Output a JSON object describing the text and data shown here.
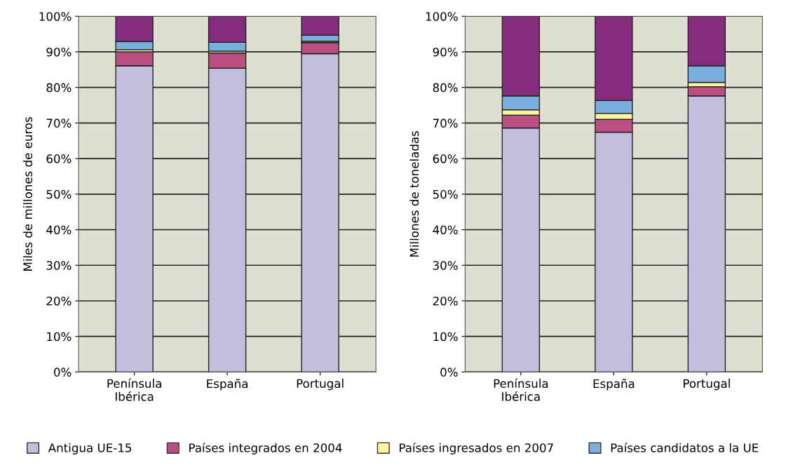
{
  "chart_data": [
    {
      "type": "bar",
      "stacked": true,
      "ylabel": "Miles de millones de euros",
      "categories": [
        "Península\nIbérica",
        "España",
        "Portugal"
      ],
      "ylim": [
        0,
        100
      ],
      "yticks": [
        {
          "value": 0,
          "label": "0%"
        },
        {
          "value": 10,
          "label": "10%"
        },
        {
          "value": 20,
          "label": "20%"
        },
        {
          "value": 30,
          "label": "30%"
        },
        {
          "value": 40,
          "label": "40%"
        },
        {
          "value": 50,
          "label": "50%"
        },
        {
          "value": 60,
          "label": "60%"
        },
        {
          "value": 70,
          "label": "70%"
        },
        {
          "value": 80,
          "label": "80%"
        },
        {
          "value": 90,
          "label": "90%"
        },
        {
          "value": 100,
          "label": "100%"
        }
      ],
      "grid": "y",
      "legend": "bottom",
      "series": [
        {
          "name": "Antigua UE-15",
          "color": "#c2bedd",
          "values": [
            86.1,
            85.4,
            89.5
          ]
        },
        {
          "name": "Países integrados en 2004",
          "color": "#b94f82",
          "values": [
            3.9,
            4.3,
            3.1
          ]
        },
        {
          "name": "Países ingresados en 2007",
          "color": "#fff59a",
          "values": [
            0.6,
            0.5,
            0.4
          ]
        },
        {
          "name": "Países candidatos a la UE",
          "color": "#7aaedd",
          "values": [
            2.3,
            2.5,
            1.7
          ]
        },
        {
          "color": "#862c7f",
          "values": [
            7.1,
            7.3,
            5.3
          ]
        }
      ]
    },
    {
      "type": "bar",
      "stacked": true,
      "ylabel": "Millones de toneladas",
      "categories": [
        "Península\nIbérica",
        "España",
        "Portugal"
      ],
      "ylim": [
        0,
        100
      ],
      "yticks": [
        {
          "value": 0,
          "label": "0%"
        },
        {
          "value": 10,
          "label": "10%"
        },
        {
          "value": 20,
          "label": "20%"
        },
        {
          "value": 30,
          "label": "30%"
        },
        {
          "value": 40,
          "label": "40%"
        },
        {
          "value": 50,
          "label": "50%"
        },
        {
          "value": 60,
          "label": "60%"
        },
        {
          "value": 70,
          "label": "70%"
        },
        {
          "value": 80,
          "label": "80%"
        },
        {
          "value": 90,
          "label": "90%"
        },
        {
          "value": 100,
          "label": "100%"
        }
      ],
      "grid": "y",
      "series": [
        {
          "color": "#c2bedd",
          "values": [
            68.6,
            67.4,
            77.6
          ]
        },
        {
          "color": "#b94f82",
          "values": [
            3.6,
            3.6,
            2.6
          ]
        },
        {
          "color": "#fff59a",
          "values": [
            1.5,
            1.7,
            1.2
          ]
        },
        {
          "color": "#7aaedd",
          "values": [
            3.9,
            3.6,
            4.7
          ]
        },
        {
          "color": "#862c7f",
          "values": [
            22.4,
            23.7,
            13.9
          ]
        }
      ]
    }
  ]
}
